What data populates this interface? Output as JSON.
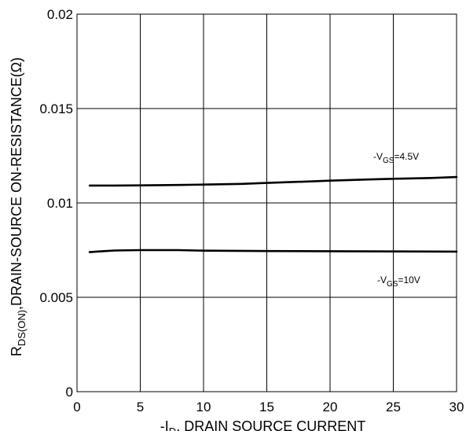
{
  "chart_data": {
    "type": "line",
    "xlim": [
      0,
      30
    ],
    "ylim": [
      0,
      0.02
    ],
    "x_ticks": [
      "0",
      "5",
      "10",
      "15",
      "20",
      "25",
      "30"
    ],
    "y_ticks": [
      "0",
      "0.005",
      "0.01",
      "0.015",
      "0.02"
    ],
    "xlabel": {
      "prefix": "-I",
      "sub": "D",
      "suffix": ", DRAIN SOURCE CURRENT"
    },
    "ylabel": {
      "prefix": "R",
      "sub": "DS(ON)",
      "suffix": ",DRAIN-SOURCE ON-RESISTANCE(Ω)"
    },
    "grid": true,
    "series": [
      {
        "label": {
          "prefix": "-V",
          "sub": "GS",
          "suffix": "=4.5V"
        },
        "x": [
          1,
          3,
          5,
          8,
          10,
          13,
          15,
          18,
          20,
          23,
          25,
          28,
          30
        ],
        "y": [
          0.01092,
          0.01092,
          0.01093,
          0.01095,
          0.01097,
          0.01101,
          0.01106,
          0.01113,
          0.01118,
          0.01124,
          0.01128,
          0.01132,
          0.01137
        ]
      },
      {
        "label": {
          "prefix": "-V",
          "sub": "GS",
          "suffix": "=10V"
        },
        "x": [
          1,
          2,
          3,
          5,
          8,
          10,
          15,
          20,
          25,
          30
        ],
        "y": [
          0.00739,
          0.00744,
          0.00748,
          0.0075,
          0.0075,
          0.00747,
          0.00745,
          0.00744,
          0.00743,
          0.00742
        ]
      }
    ]
  }
}
